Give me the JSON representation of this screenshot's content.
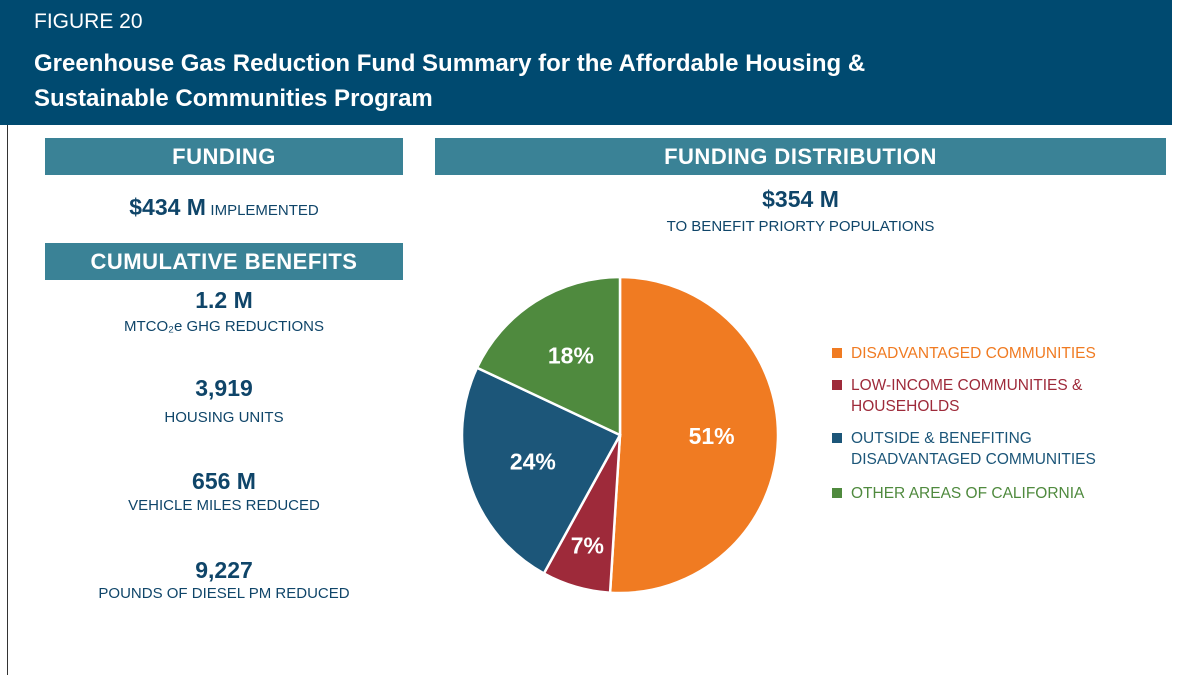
{
  "header": {
    "figure": "FIGURE 20",
    "title_lines": [
      "Greenhouse Gas Reduction Fund Summary for the Affordable Housing &",
      "Sustainable Communities Program"
    ]
  },
  "funding": {
    "heading": "FUNDING",
    "amount": "$434 M",
    "label": "IMPLEMENTED"
  },
  "benefits": {
    "heading": "CUMULATIVE BENEFITS",
    "items": [
      {
        "value": "1.2 M",
        "label": "MTCO₂e GHG REDUCTIONS"
      },
      {
        "value": "3,919",
        "label": "HOUSING UNITS"
      },
      {
        "value": "656 M",
        "label": "VEHICLE MILES REDUCED"
      },
      {
        "value": "9,227",
        "label": "POUNDS OF DIESEL PM REDUCED"
      }
    ]
  },
  "distribution": {
    "heading": "FUNDING DISTRIBUTION",
    "amount": "$354 M",
    "label": "TO BENEFIT PRIORTY POPULATIONS"
  },
  "chart_data": {
    "type": "pie",
    "categories": [
      "DISADVANTAGED COMMUNITIES",
      "LOW-INCOME COMMUNITIES & HOUSEHOLDS",
      "OUTSIDE & BENEFITING DISADVANTAGED COMMUNITIES",
      "OTHER AREAS OF CALIFORNIA"
    ],
    "values": [
      51,
      7,
      24,
      18
    ],
    "value_labels": [
      "51%",
      "7%",
      "24%",
      "18%"
    ],
    "colors": [
      "#f07b22",
      "#9e2a3a",
      "#1c5679",
      "#4f8a3e"
    ]
  }
}
